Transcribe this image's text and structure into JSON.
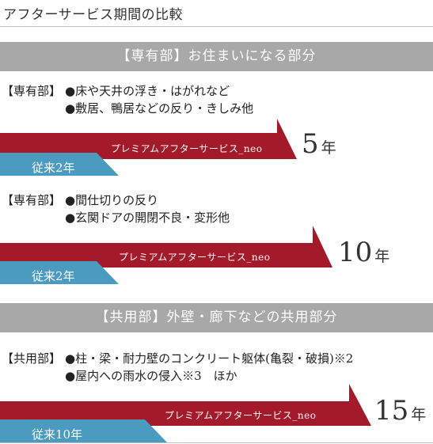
{
  "title": "アフターサービス期間の比較",
  "colors": {
    "red": "#a31a2a",
    "blue": "#4b9ac0",
    "banner": "#a8a8a8"
  },
  "sections": [
    {
      "banner": "【専有部】お住まいになる部分"
    },
    {
      "banner": "【共用部】外壁・廊下などの共用部分"
    }
  ],
  "items": [
    {
      "tag": "【専有部】",
      "line1": "●床や天井の浮き・はがれなど",
      "line2": "●敷居、鴨居などの反り・きしみ他",
      "neo_label": "プレミアムアフターサービス_neo",
      "neo_years": "5",
      "years_unit": "年",
      "prev_label": "従来2年"
    },
    {
      "tag": "【専有部】",
      "line1": "●間仕切りの反り",
      "line2": "●玄関ドアの開閉不良・変形他",
      "neo_label": "プレミアムアフターサービス_neo",
      "neo_years": "10",
      "years_unit": "年",
      "prev_label": "従来2年"
    },
    {
      "tag": "【共用部】",
      "line1": "●柱・梁・耐力壁のコンクリート躯体(亀裂・破損)※2",
      "line2": "●屋内への雨水の侵入※3　ほか",
      "neo_label": "プレミアムアフターサービス_neo",
      "neo_years": "15",
      "years_unit": "年",
      "prev_label": "従来10年"
    }
  ]
}
